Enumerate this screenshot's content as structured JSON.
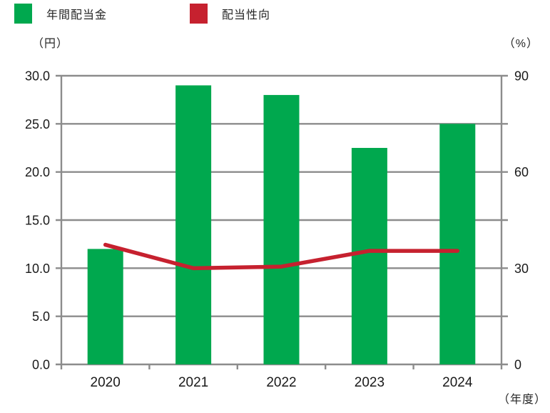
{
  "legend": {
    "items": [
      {
        "label": "年間配当金",
        "color": "#00A84E"
      },
      {
        "label": "配当性向",
        "color": "#C6212F"
      }
    ]
  },
  "chart_data": {
    "type": "bar",
    "subtype": "combo-bar-line",
    "categories": [
      "2020",
      "2021",
      "2022",
      "2023",
      "2024"
    ],
    "series": [
      {
        "name": "年間配当金",
        "type": "bar",
        "axis": "left",
        "color": "#00A84E",
        "values": [
          12.0,
          29.0,
          28.0,
          22.5,
          25.0
        ]
      },
      {
        "name": "配当性向",
        "type": "line",
        "axis": "right",
        "color": "#C6212F",
        "values": [
          37.3,
          30.0,
          30.5,
          35.4,
          35.4
        ]
      }
    ],
    "left_axis": {
      "unit_label": "（円）",
      "min": 0,
      "max": 30,
      "grid_step": 5,
      "tick_labels": [
        "0.0",
        "5.0",
        "10.0",
        "15.0",
        "20.0",
        "25.0",
        "30.0"
      ]
    },
    "right_axis": {
      "unit_label": "（%）",
      "min": 0,
      "max": 90,
      "tick_step": 15,
      "label_step": 30,
      "tick_labels": [
        "0",
        "30",
        "60",
        "90"
      ]
    },
    "x_axis": {
      "unit_label": "（年度）"
    },
    "grid": true,
    "grid_color": "#8C8C8C",
    "legend_position": "top-left",
    "title": ""
  }
}
